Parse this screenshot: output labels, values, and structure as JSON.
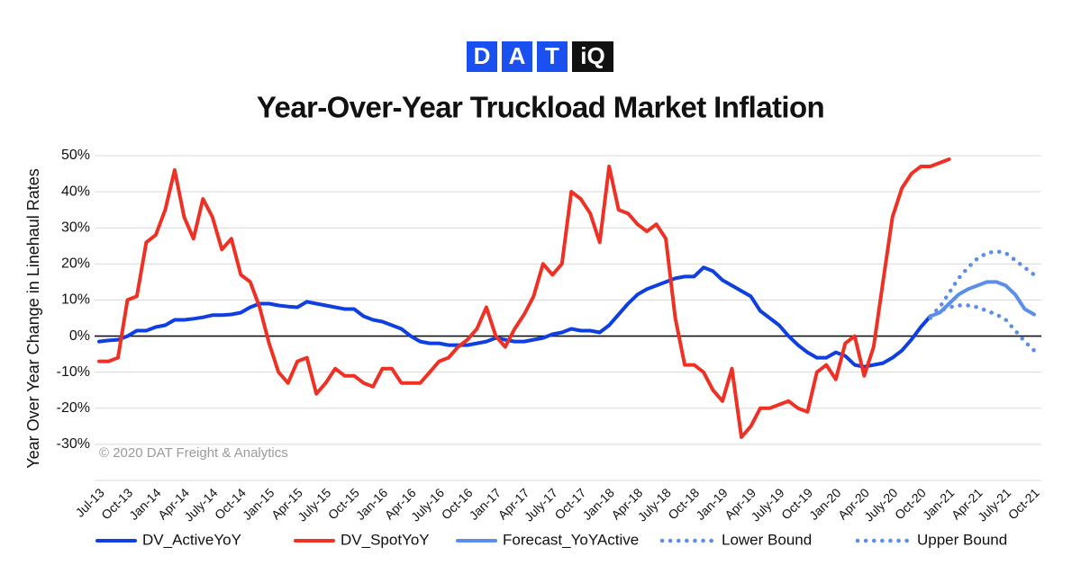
{
  "chart_data": {
    "type": "line",
    "logo": [
      "D",
      "A",
      "T",
      "iQ"
    ],
    "title": "Year-Over-Year Truckload Market Inflation",
    "y_label": "Year Over Year Change in Linehaul Rates",
    "annotation": "© 2020 DAT Freight & Analytics",
    "ylim": [
      -40,
      50
    ],
    "yticks": [
      {
        "value": -30,
        "label": "-30%"
      },
      {
        "value": -20,
        "label": "-20%"
      },
      {
        "value": -10,
        "label": "-10%"
      },
      {
        "value": 0,
        "label": "0%"
      },
      {
        "value": 10,
        "label": "10%"
      },
      {
        "value": 20,
        "label": "20%"
      },
      {
        "value": 30,
        "label": "30%"
      },
      {
        "value": 40,
        "label": "40%"
      },
      {
        "value": 50,
        "label": "50%"
      }
    ],
    "grid": true,
    "zero_line": true,
    "legend": "bottom",
    "categories": [
      "Jul-13",
      null,
      null,
      "Oct-13",
      null,
      null,
      "Jan-14",
      null,
      null,
      "Apr-14",
      null,
      null,
      "July-14",
      null,
      null,
      "Oct-14",
      null,
      null,
      "Jan-15",
      null,
      null,
      "Apr-15",
      null,
      null,
      "July-15",
      null,
      null,
      "Oct-15",
      null,
      null,
      "Jan-16",
      null,
      null,
      "Apr-16",
      null,
      null,
      "July-16",
      null,
      null,
      "Oct-16",
      null,
      null,
      "Jan-17",
      null,
      null,
      "Apr-17",
      null,
      null,
      "July-17",
      null,
      null,
      "Oct-17",
      null,
      null,
      "Jan-18",
      null,
      null,
      "Apr-18",
      null,
      null,
      "July-18",
      null,
      null,
      "Oct-18",
      null,
      null,
      "Jan-19",
      null,
      null,
      "Apr-19",
      null,
      null,
      "July-19",
      null,
      null,
      "Oct-19",
      null,
      null,
      "Jan-20",
      null,
      null,
      "Apr-20",
      null,
      null,
      "July-20",
      null,
      null,
      "Oct-20",
      null,
      null,
      "Jan-21",
      null,
      null,
      "Apr-21",
      null,
      null,
      "July-21",
      null,
      null,
      "Oct-21"
    ],
    "series": [
      {
        "name": "DV_ActiveYoY",
        "color": "#0f3fe0",
        "dash": "solid",
        "values": [
          -1.5,
          -1.2,
          -1,
          0,
          1.5,
          1.5,
          2.5,
          3,
          4.5,
          4.5,
          4.8,
          5.2,
          5.8,
          5.8,
          6,
          6.5,
          8,
          9,
          9,
          8.5,
          8.2,
          8,
          9.5,
          9,
          8.5,
          8,
          7.5,
          7.5,
          5.5,
          4.5,
          4,
          3,
          2,
          0,
          -1.5,
          -2,
          -2,
          -2.5,
          -2.5,
          -2.5,
          -2,
          -1.5,
          -0.5,
          -1,
          -1.5,
          -1.5,
          -1,
          -0.5,
          0.5,
          1,
          2,
          1.5,
          1.5,
          1,
          3,
          6,
          9,
          11.5,
          13,
          14,
          15,
          16,
          16.5,
          16.5,
          19,
          18,
          15.5,
          14,
          12.5,
          11,
          7,
          5,
          3,
          0,
          -2.5,
          -4.5,
          -6,
          -6,
          -4.5,
          -5.5,
          -8,
          -8.5,
          -8,
          -7.5,
          -6,
          -4,
          -1,
          2.5,
          5.5,
          null,
          null,
          null,
          null,
          null,
          null,
          null,
          null,
          null,
          null,
          null
        ]
      },
      {
        "name": "DV_SpotYoY",
        "color": "#ee3124",
        "dash": "solid",
        "values": [
          -7,
          -7,
          -6,
          10,
          11,
          26,
          28,
          35,
          46,
          33,
          27,
          38,
          33,
          24,
          27,
          17,
          15,
          8,
          -2,
          -10,
          -13,
          -7,
          -6,
          -16,
          -13,
          -9,
          -11,
          -11,
          -13,
          -14,
          -9,
          -9,
          -13,
          -13,
          -13,
          -10,
          -7,
          -6,
          -3,
          -1,
          2,
          8,
          0,
          -3,
          2,
          6,
          11,
          20,
          17,
          20,
          40,
          38,
          34,
          26,
          47,
          35,
          34,
          31,
          29,
          31,
          27,
          5,
          -8,
          -8,
          -10,
          -15,
          -18,
          -9,
          -28,
          -25,
          -20,
          -20,
          -19,
          -18,
          -20,
          -21,
          -10,
          -8,
          -12,
          -2,
          0,
          -11,
          -3,
          15,
          33,
          41,
          45,
          47,
          47,
          48,
          49,
          null,
          null,
          null,
          null,
          null,
          null,
          null,
          null,
          null
        ]
      },
      {
        "name": "Forecast_YoYActive",
        "color": "#5b8ee8",
        "dash": "solid",
        "values": [
          null,
          null,
          null,
          null,
          null,
          null,
          null,
          null,
          null,
          null,
          null,
          null,
          null,
          null,
          null,
          null,
          null,
          null,
          null,
          null,
          null,
          null,
          null,
          null,
          null,
          null,
          null,
          null,
          null,
          null,
          null,
          null,
          null,
          null,
          null,
          null,
          null,
          null,
          null,
          null,
          null,
          null,
          null,
          null,
          null,
          null,
          null,
          null,
          null,
          null,
          null,
          null,
          null,
          null,
          null,
          null,
          null,
          null,
          null,
          null,
          null,
          null,
          null,
          null,
          null,
          null,
          null,
          null,
          null,
          null,
          null,
          null,
          null,
          null,
          null,
          null,
          null,
          null,
          null,
          null,
          null,
          null,
          null,
          null,
          null,
          null,
          null,
          null,
          5.5,
          6.5,
          9,
          11.5,
          13,
          14,
          15,
          15,
          14,
          11.5,
          7.5,
          6
        ]
      },
      {
        "name": "Lower Bound",
        "color": "#5b8ee8",
        "dash": "dotted",
        "values": [
          null,
          null,
          null,
          null,
          null,
          null,
          null,
          null,
          null,
          null,
          null,
          null,
          null,
          null,
          null,
          null,
          null,
          null,
          null,
          null,
          null,
          null,
          null,
          null,
          null,
          null,
          null,
          null,
          null,
          null,
          null,
          null,
          null,
          null,
          null,
          null,
          null,
          null,
          null,
          null,
          null,
          null,
          null,
          null,
          null,
          null,
          null,
          null,
          null,
          null,
          null,
          null,
          null,
          null,
          null,
          null,
          null,
          null,
          null,
          null,
          null,
          null,
          null,
          null,
          null,
          null,
          null,
          null,
          null,
          null,
          null,
          null,
          null,
          null,
          null,
          null,
          null,
          null,
          null,
          null,
          null,
          null,
          null,
          null,
          null,
          null,
          null,
          null,
          5,
          7,
          8,
          8.5,
          8.5,
          8,
          7,
          6,
          4.5,
          1.5,
          -1.5,
          -4
        ]
      },
      {
        "name": "Upper Bound",
        "color": "#5b8ee8",
        "dash": "dotted",
        "values": [
          null,
          null,
          null,
          null,
          null,
          null,
          null,
          null,
          null,
          null,
          null,
          null,
          null,
          null,
          null,
          null,
          null,
          null,
          null,
          null,
          null,
          null,
          null,
          null,
          null,
          null,
          null,
          null,
          null,
          null,
          null,
          null,
          null,
          null,
          null,
          null,
          null,
          null,
          null,
          null,
          null,
          null,
          null,
          null,
          null,
          null,
          null,
          null,
          null,
          null,
          null,
          null,
          null,
          null,
          null,
          null,
          null,
          null,
          null,
          null,
          null,
          null,
          null,
          null,
          null,
          null,
          null,
          null,
          null,
          null,
          null,
          null,
          null,
          null,
          null,
          null,
          null,
          null,
          null,
          null,
          null,
          null,
          null,
          null,
          null,
          null,
          null,
          null,
          5.5,
          8,
          12,
          16,
          19,
          21.5,
          23,
          23.5,
          23,
          21,
          19,
          17
        ]
      }
    ]
  }
}
